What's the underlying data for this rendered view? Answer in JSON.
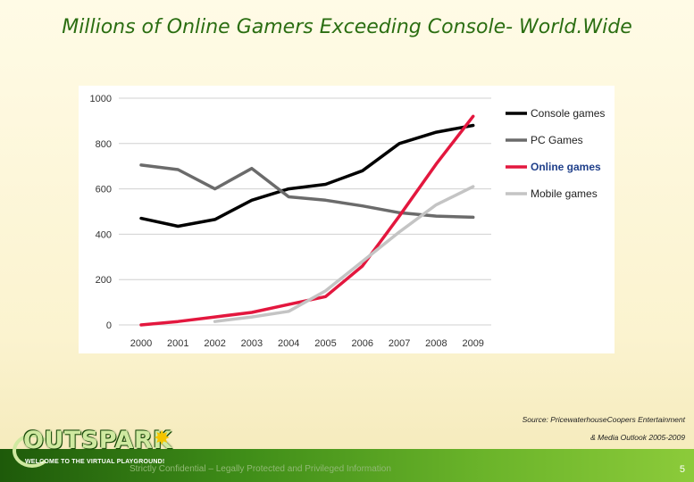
{
  "slide": {
    "title": "Millions of Online Gamers Exceeding Console- World.Wide",
    "source_line1": "Source: PricewaterhouseCoopers Entertainment",
    "source_line2": "& Media Outlook 2005-2009",
    "footer_text": "Strictly Confidential – Legally Protected and Privileged Information",
    "page_number": "5",
    "logo_word": "OUTSPARK",
    "logo_tagline": "WELCOME TO THE VIRTUAL PLAYGROUND!"
  },
  "colors": {
    "title": "#2b6e12",
    "console": "#000000",
    "pc": "#6b6b6b",
    "online": "#e3173e",
    "mobile": "#c4c4c4",
    "grid": "#d0d0d0",
    "footer": "#3f8d18"
  },
  "chart_data": {
    "type": "line",
    "title": "",
    "xlabel": "",
    "ylabel": "",
    "categories": [
      "2000",
      "2001",
      "2002",
      "2003",
      "2004",
      "2005",
      "2006",
      "2007",
      "2008",
      "2009"
    ],
    "ylim": [
      0,
      1000
    ],
    "yticks": [
      0,
      200,
      400,
      600,
      800,
      1000
    ],
    "grid": true,
    "legend_position": "right",
    "series": [
      {
        "name": "Console games",
        "color": "#000000",
        "bold": false,
        "values": [
          470,
          435,
          465,
          550,
          600,
          620,
          680,
          800,
          850,
          880
        ]
      },
      {
        "name": "PC Games",
        "color": "#6b6b6b",
        "bold": false,
        "values": [
          705,
          685,
          600,
          690,
          565,
          550,
          525,
          495,
          480,
          475
        ]
      },
      {
        "name": "Online games",
        "color": "#e3173e",
        "bold": true,
        "values": [
          0,
          15,
          35,
          55,
          90,
          125,
          260,
          480,
          710,
          920
        ]
      },
      {
        "name": "Mobile games",
        "color": "#c4c4c4",
        "bold": false,
        "values": [
          null,
          null,
          15,
          35,
          60,
          150,
          280,
          410,
          530,
          610
        ]
      }
    ]
  }
}
